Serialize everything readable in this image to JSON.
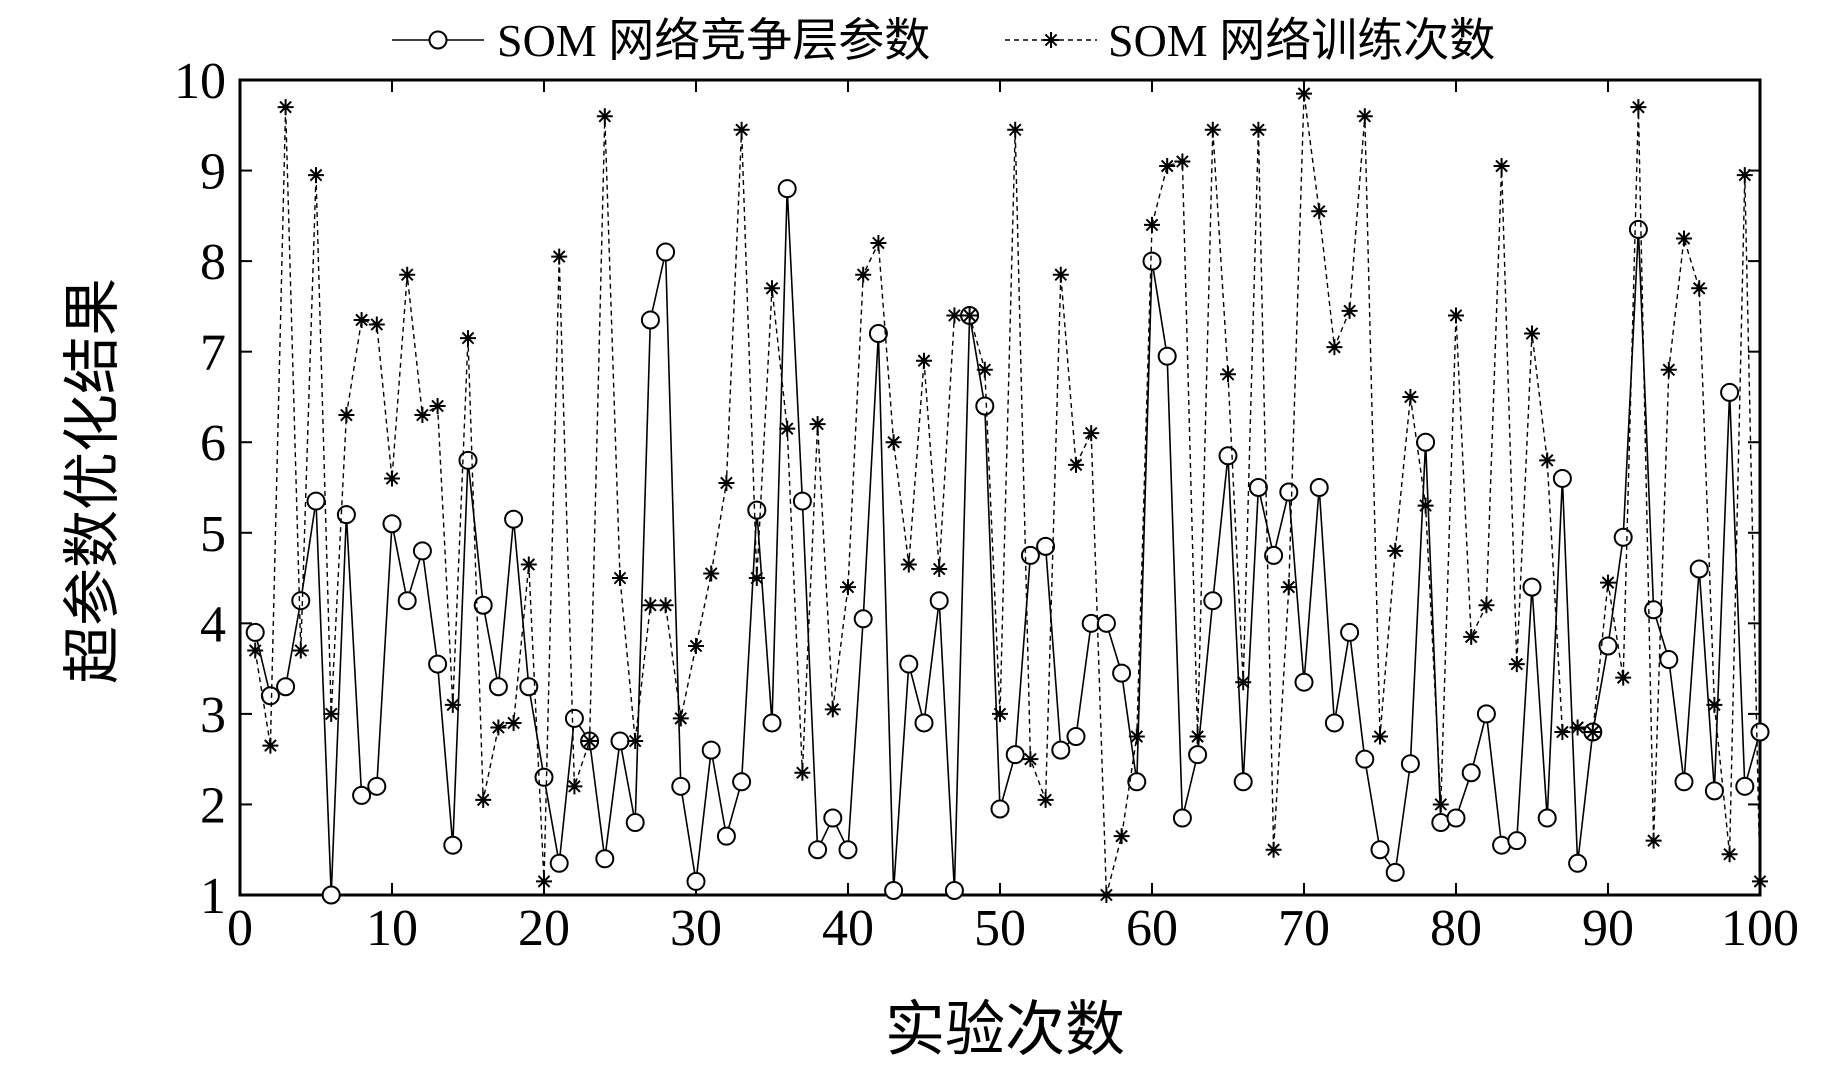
{
  "chart_data": {
    "type": "line",
    "xlabel": "实验次数",
    "ylabel": "超参数优化结果",
    "xlim": [
      0,
      100
    ],
    "ylim": [
      1,
      10
    ],
    "xticks": [
      0,
      10,
      20,
      30,
      40,
      50,
      60,
      70,
      80,
      90,
      100
    ],
    "yticks": [
      1,
      2,
      3,
      4,
      5,
      6,
      7,
      8,
      9,
      10
    ],
    "grid": false,
    "legend_position": "top",
    "series": [
      {
        "name": "SOM 网络竞争层参数",
        "line_style": "solid",
        "marker": "circle",
        "color": "#000000",
        "x": [
          1,
          2,
          3,
          4,
          5,
          6,
          7,
          8,
          9,
          10,
          11,
          12,
          13,
          14,
          15,
          16,
          17,
          18,
          19,
          20,
          21,
          22,
          23,
          24,
          25,
          26,
          27,
          28,
          29,
          30,
          31,
          32,
          33,
          34,
          35,
          36,
          37,
          38,
          39,
          40,
          41,
          42,
          43,
          44,
          45,
          46,
          47,
          48,
          49,
          50,
          51,
          52,
          53,
          54,
          55,
          56,
          57,
          58,
          59,
          60,
          61,
          62,
          63,
          64,
          65,
          66,
          67,
          68,
          69,
          70,
          71,
          72,
          73,
          74,
          75,
          76,
          77,
          78,
          79,
          80,
          81,
          82,
          83,
          84,
          85,
          86,
          87,
          88,
          89,
          90,
          91,
          92,
          93,
          94,
          95,
          96,
          97,
          98,
          99,
          100
        ],
        "values": [
          3.9,
          3.2,
          3.3,
          4.25,
          5.35,
          1.0,
          5.2,
          2.1,
          2.2,
          5.1,
          4.25,
          4.8,
          3.55,
          1.55,
          5.8,
          4.2,
          3.3,
          5.15,
          3.3,
          2.3,
          1.35,
          2.95,
          2.7,
          1.4,
          2.7,
          1.8,
          7.35,
          8.1,
          2.2,
          1.15,
          2.6,
          1.65,
          2.25,
          5.25,
          2.9,
          8.8,
          5.35,
          1.5,
          1.85,
          1.5,
          4.05,
          7.2,
          1.05,
          3.55,
          2.9,
          4.25,
          1.05,
          7.4,
          6.4,
          1.95,
          2.55,
          4.75,
          4.85,
          2.6,
          2.75,
          4.0,
          4.0,
          3.45,
          2.25,
          8.0,
          6.95,
          1.85,
          2.55,
          4.25,
          5.85,
          2.25,
          5.5,
          4.75,
          5.45,
          3.35,
          5.5,
          2.9,
          3.9,
          2.5,
          1.5,
          1.25,
          2.45,
          6.0,
          1.8,
          1.85,
          2.35,
          3.0,
          1.55,
          1.6,
          4.4,
          1.85,
          5.6,
          1.35,
          2.8,
          3.75,
          4.95,
          8.35,
          4.15,
          3.6,
          2.25,
          4.6,
          2.15,
          6.55,
          2.2,
          2.8
        ]
      },
      {
        "name": "SOM 网络训练次数",
        "line_style": "dashed",
        "marker": "asterisk",
        "color": "#000000",
        "x": [
          1,
          2,
          3,
          4,
          5,
          6,
          7,
          8,
          9,
          10,
          11,
          12,
          13,
          14,
          15,
          16,
          17,
          18,
          19,
          20,
          21,
          22,
          23,
          24,
          25,
          26,
          27,
          28,
          29,
          30,
          31,
          32,
          33,
          34,
          35,
          36,
          37,
          38,
          39,
          40,
          41,
          42,
          43,
          44,
          45,
          46,
          47,
          48,
          49,
          50,
          51,
          52,
          53,
          54,
          55,
          56,
          57,
          58,
          59,
          60,
          61,
          62,
          63,
          64,
          65,
          66,
          67,
          68,
          69,
          70,
          71,
          72,
          73,
          74,
          75,
          76,
          77,
          78,
          79,
          80,
          81,
          82,
          83,
          84,
          85,
          86,
          87,
          88,
          89,
          90,
          91,
          92,
          93,
          94,
          95,
          96,
          97,
          98,
          99,
          100
        ],
        "values": [
          3.7,
          2.65,
          9.7,
          3.7,
          8.95,
          3.0,
          6.3,
          7.35,
          7.3,
          5.6,
          7.85,
          6.3,
          6.4,
          3.1,
          7.15,
          2.05,
          2.85,
          2.9,
          4.65,
          1.15,
          8.05,
          2.2,
          2.7,
          9.6,
          4.5,
          2.7,
          4.2,
          4.2,
          2.95,
          3.75,
          4.55,
          5.55,
          9.45,
          4.5,
          7.7,
          6.15,
          2.35,
          6.2,
          3.05,
          4.4,
          7.85,
          8.2,
          6.0,
          4.65,
          6.9,
          4.6,
          7.4,
          7.4,
          6.8,
          3.0,
          9.45,
          2.5,
          2.05,
          7.85,
          5.75,
          6.1,
          1.0,
          1.65,
          2.75,
          8.4,
          9.05,
          9.1,
          2.75,
          9.45,
          6.75,
          3.35,
          9.45,
          1.5,
          4.4,
          9.85,
          8.55,
          7.05,
          7.45,
          9.6,
          2.75,
          4.8,
          6.5,
          5.3,
          2.0,
          7.4,
          3.85,
          4.2,
          9.05,
          3.55,
          7.2,
          5.8,
          2.8,
          2.85,
          2.8,
          4.45,
          3.4,
          9.7,
          1.6,
          6.8,
          8.25,
          7.7,
          3.1,
          1.45,
          8.95,
          1.15
        ]
      }
    ]
  }
}
